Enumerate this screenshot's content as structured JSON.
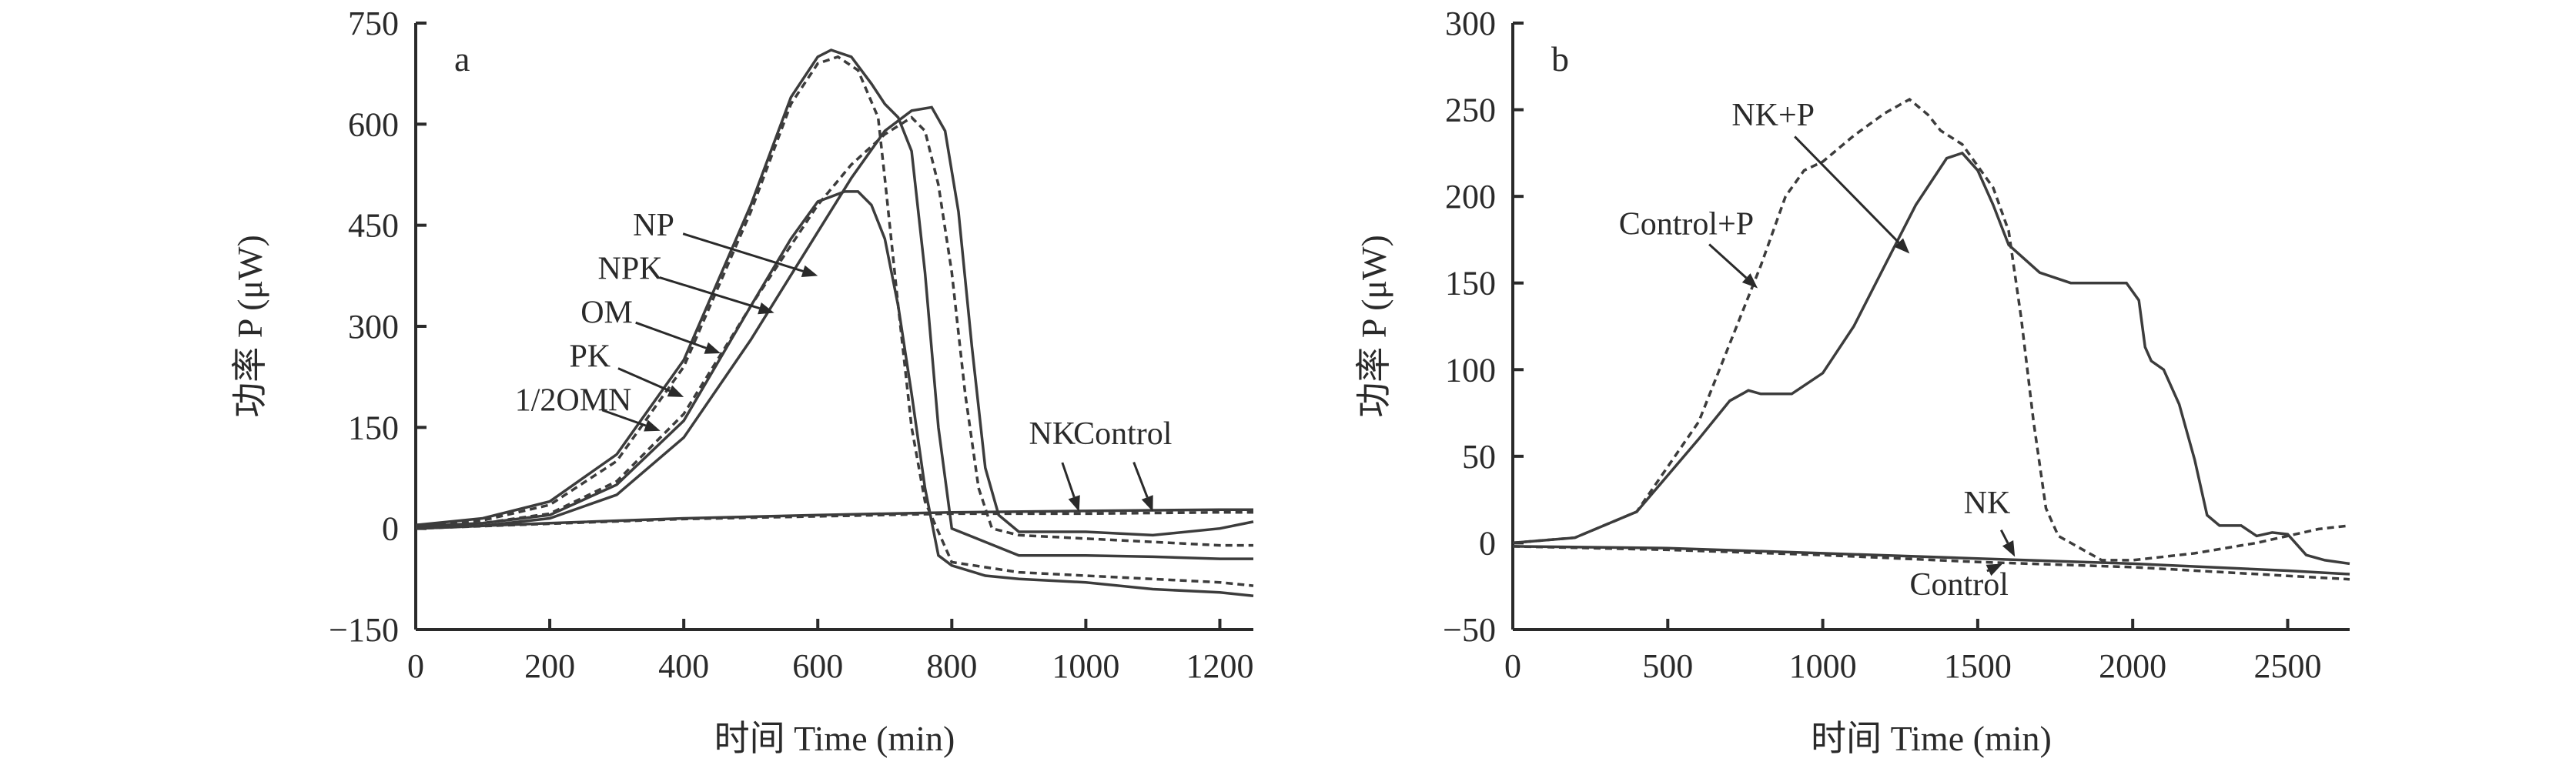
{
  "chart_data": [
    {
      "panel": "a",
      "type": "line",
      "xlabel": "时间 Time (min)",
      "ylabel": "功率 P (μW)",
      "xlim": [
        0,
        1250
      ],
      "ylim": [
        -150,
        750
      ],
      "xticks": [
        0,
        200,
        400,
        600,
        800,
        1000,
        1200
      ],
      "yticks": [
        -150,
        0,
        150,
        300,
        450,
        600,
        750
      ],
      "xtick_labels": [
        "0",
        "200",
        "400",
        "600",
        "800",
        "1000",
        "1200"
      ],
      "ytick_labels": [
        "−150",
        "0",
        "150",
        "300",
        "450",
        "600",
        "750"
      ],
      "series": [
        {
          "name": "NP",
          "style": "solid",
          "x": [
            0,
            100,
            200,
            300,
            400,
            500,
            560,
            600,
            620,
            650,
            680,
            700,
            720,
            740,
            760,
            780,
            800,
            900,
            1000,
            1100,
            1200,
            1250
          ],
          "y": [
            5,
            15,
            40,
            110,
            250,
            480,
            640,
            700,
            710,
            700,
            660,
            630,
            610,
            560,
            380,
            150,
            0,
            -40,
            -40,
            -42,
            -45,
            -45
          ]
        },
        {
          "name": "NPK",
          "style": "dash",
          "x": [
            0,
            100,
            200,
            300,
            400,
            500,
            560,
            600,
            630,
            660,
            690,
            700,
            720,
            740,
            760,
            800,
            900,
            1000,
            1200,
            1250
          ],
          "y": [
            5,
            12,
            35,
            100,
            240,
            470,
            630,
            690,
            700,
            680,
            610,
            520,
            330,
            150,
            40,
            -50,
            -65,
            -70,
            -80,
            -85
          ]
        },
        {
          "name": "OM",
          "style": "solid",
          "x": [
            0,
            100,
            200,
            300,
            400,
            500,
            560,
            600,
            640,
            660,
            680,
            700,
            720,
            740,
            760,
            780,
            800,
            850,
            900,
            1000,
            1100,
            1200,
            1250
          ],
          "y": [
            3,
            8,
            20,
            65,
            160,
            330,
            430,
            485,
            500,
            500,
            480,
            430,
            330,
            200,
            60,
            -40,
            -55,
            -70,
            -75,
            -80,
            -90,
            -95,
            -100
          ]
        },
        {
          "name": "PK",
          "style": "dash",
          "x": [
            0,
            100,
            200,
            300,
            400,
            500,
            600,
            650,
            700,
            740,
            760,
            780,
            800,
            820,
            840,
            860,
            900,
            1000,
            1100,
            1200,
            1250
          ],
          "y": [
            3,
            8,
            22,
            70,
            170,
            330,
            480,
            540,
            585,
            610,
            590,
            510,
            380,
            200,
            60,
            0,
            -10,
            -15,
            -20,
            -25,
            -25
          ]
        },
        {
          "name": "1/2OMN",
          "style": "solid",
          "x": [
            0,
            100,
            200,
            300,
            400,
            500,
            600,
            650,
            700,
            740,
            770,
            790,
            810,
            830,
            850,
            870,
            900,
            1000,
            1100,
            1200,
            1250
          ],
          "y": [
            0,
            4,
            15,
            50,
            135,
            280,
            440,
            520,
            590,
            620,
            625,
            590,
            470,
            270,
            90,
            20,
            -5,
            -5,
            -10,
            0,
            10
          ]
        },
        {
          "name": "NK",
          "style": "solid",
          "x": [
            0,
            200,
            400,
            600,
            800,
            1000,
            1200,
            1250
          ],
          "y": [
            0,
            8,
            15,
            20,
            24,
            26,
            28,
            28
          ]
        },
        {
          "name": "Control",
          "style": "dash",
          "x": [
            0,
            200,
            400,
            600,
            800,
            1000,
            1200,
            1250
          ],
          "y": [
            0,
            7,
            14,
            18,
            22,
            22,
            24,
            24
          ]
        }
      ],
      "annotations": [
        {
          "label": "NP",
          "text_x": 355,
          "text_y": 435,
          "target_x": 600,
          "target_y": 375
        },
        {
          "label": "NPK",
          "text_x": 320,
          "text_y": 370,
          "target_x": 535,
          "target_y": 320
        },
        {
          "label": "OM",
          "text_x": 285,
          "text_y": 305,
          "target_x": 455,
          "target_y": 260
        },
        {
          "label": "PK",
          "text_x": 260,
          "text_y": 240,
          "target_x": 400,
          "target_y": 195
        },
        {
          "label": "1/2OMN",
          "text_x": 235,
          "text_y": 175,
          "target_x": 365,
          "target_y": 145
        },
        {
          "label": "NK",
          "text_x": 950,
          "text_y": 125,
          "target_x": 990,
          "target_y": 25
        },
        {
          "label": "Control",
          "text_x": 1055,
          "text_y": 125,
          "target_x": 1100,
          "target_y": 25
        }
      ],
      "panel_letter": "a"
    },
    {
      "panel": "b",
      "type": "line",
      "xlabel": "时间 Time (min)",
      "ylabel": "功率 P (μW)",
      "xlim": [
        0,
        2700
      ],
      "ylim": [
        -50,
        300
      ],
      "xticks": [
        0,
        500,
        1000,
        1500,
        2000,
        2500
      ],
      "yticks": [
        -50,
        0,
        50,
        100,
        150,
        200,
        250,
        300
      ],
      "xtick_labels": [
        "0",
        "500",
        "1000",
        "1500",
        "2000",
        "2500"
      ],
      "ytick_labels": [
        "−50",
        "0",
        "50",
        "100",
        "150",
        "200",
        "250",
        "300"
      ],
      "series": [
        {
          "name": "NK+P",
          "style": "solid",
          "x": [
            0,
            200,
            400,
            600,
            700,
            760,
            800,
            900,
            1000,
            1100,
            1200,
            1300,
            1400,
            1450,
            1500,
            1550,
            1600,
            1700,
            1800,
            1900,
            1980,
            2020,
            2040,
            2060,
            2100,
            2150,
            2200,
            2240,
            2280,
            2350,
            2400,
            2450,
            2500,
            2560,
            2620,
            2700
          ],
          "y": [
            0,
            3,
            18,
            60,
            82,
            88,
            86,
            86,
            98,
            125,
            160,
            195,
            222,
            225,
            215,
            195,
            172,
            156,
            150,
            150,
            150,
            140,
            113,
            105,
            100,
            80,
            48,
            16,
            10,
            10,
            4,
            6,
            5,
            -7,
            -10,
            -12
          ]
        },
        {
          "name": "Control+P",
          "style": "dash",
          "x": [
            0,
            200,
            400,
            600,
            700,
            800,
            880,
            940,
            1000,
            1100,
            1200,
            1280,
            1340,
            1380,
            1450,
            1550,
            1600,
            1640,
            1680,
            1720,
            1760,
            1800,
            1900,
            2000,
            2200,
            2400,
            2600,
            2700
          ],
          "y": [
            0,
            3,
            18,
            70,
            115,
            160,
            200,
            215,
            220,
            235,
            248,
            256,
            247,
            238,
            230,
            205,
            180,
            130,
            70,
            20,
            4,
            0,
            -10,
            -10,
            -6,
            0,
            8,
            10
          ]
        },
        {
          "name": "NK",
          "style": "solid",
          "x": [
            0,
            500,
            1000,
            1500,
            2000,
            2500,
            2700
          ],
          "y": [
            -2,
            -3,
            -6,
            -9,
            -12,
            -16,
            -18
          ]
        },
        {
          "name": "Control",
          "style": "dash",
          "x": [
            0,
            500,
            1000,
            1500,
            2000,
            2500,
            2700
          ],
          "y": [
            -2,
            -4,
            -7,
            -11,
            -14,
            -19,
            -21
          ]
        }
      ],
      "annotations": [
        {
          "label": "NK+P",
          "text_x": 840,
          "text_y": 241,
          "target_x": 1280,
          "target_y": 167
        },
        {
          "label": "Control+P",
          "text_x": 560,
          "text_y": 178,
          "target_x": 790,
          "target_y": 147
        },
        {
          "label": "NK",
          "text_x": 1530,
          "text_y": 17,
          "target_x": 1620,
          "target_y": -8
        },
        {
          "label": "Control",
          "text_x": 1440,
          "text_y": -30,
          "target_x": 1580,
          "target_y": -12
        }
      ],
      "panel_letter": "b"
    }
  ]
}
